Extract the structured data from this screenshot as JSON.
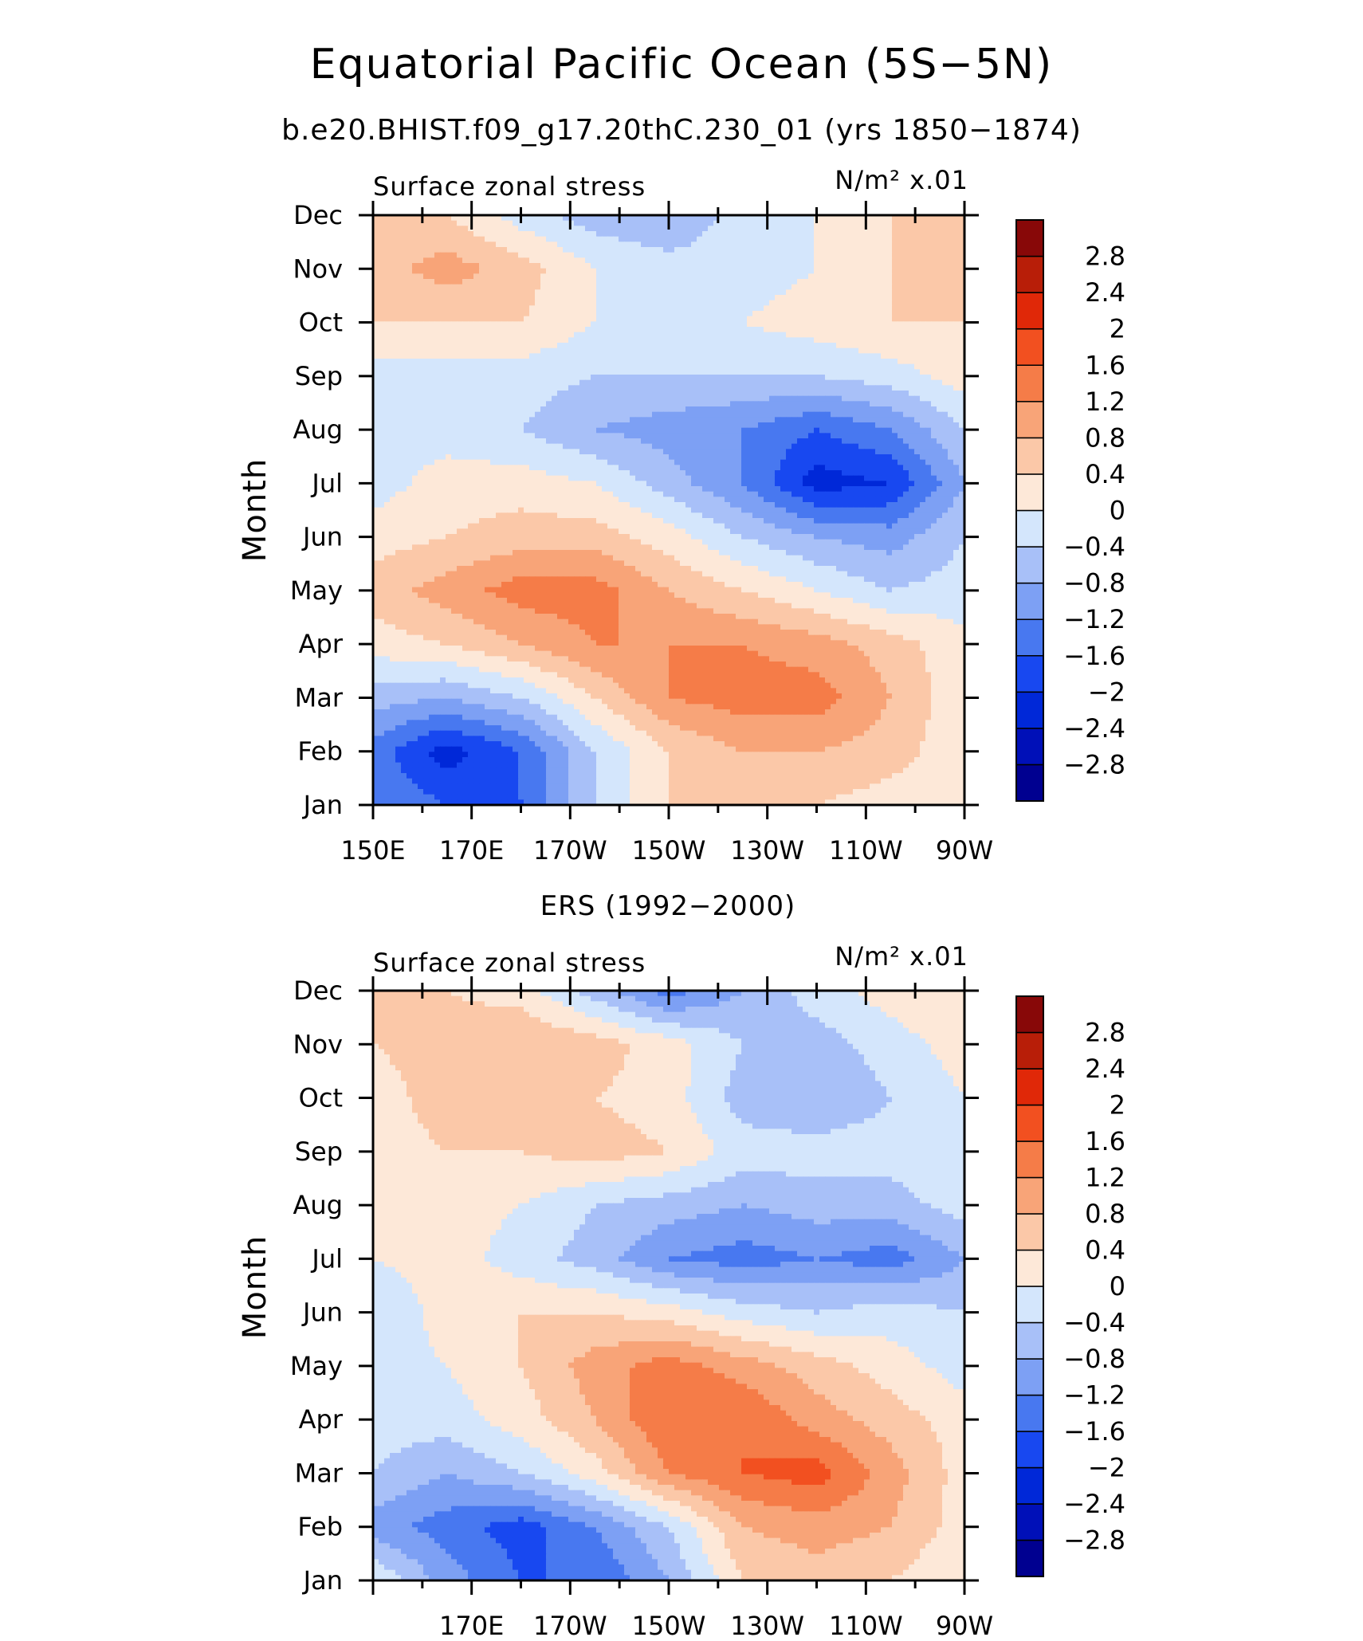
{
  "figure": {
    "title": "Equatorial Pacific Ocean (5S−5N)",
    "subtitle": "b.e20.BHIST.f09_g17.20thC.230_01 (yrs 1850−1874)"
  },
  "chart_data": [
    {
      "type": "heatmap",
      "title": "",
      "left_string": "Surface zonal stress",
      "right_string": "N/m² x.01",
      "ylabel": "Month",
      "xlabel": "",
      "y_ticks": [
        "Jan",
        "Feb",
        "Mar",
        "Apr",
        "May",
        "Jun",
        "Jul",
        "Aug",
        "Sep",
        "Oct",
        "Nov",
        "Dec"
      ],
      "x_tick_labels": [
        "150E",
        "170E",
        "170W",
        "150W",
        "130W",
        "110W",
        "90W"
      ],
      "x_tick_lon": [
        150,
        170,
        190,
        210,
        230,
        250,
        270
      ],
      "xlim": [
        150,
        270
      ],
      "colorbar_levels": [
        -2.8,
        -2.4,
        -2,
        -1.6,
        -1.2,
        -0.8,
        -0.4,
        0,
        0.4,
        0.8,
        1.2,
        1.6,
        2,
        2.4,
        2.8
      ],
      "field_lon": [
        150,
        165,
        180,
        195,
        210,
        225,
        240,
        255,
        270
      ],
      "field_months": [
        "Jan",
        "Feb",
        "Mar",
        "Apr",
        "May",
        "Jun",
        "Jul",
        "Aug",
        "Sep",
        "Oct",
        "Nov",
        "Dec"
      ],
      "values": [
        [
          -1.2,
          -1.6,
          -1.6,
          -0.4,
          0.4,
          0.4,
          0.4,
          0.2,
          0.0
        ],
        [
          -1.4,
          -2.2,
          -1.6,
          -0.4,
          0.4,
          0.8,
          0.8,
          0.6,
          0.1
        ],
        [
          -0.6,
          -0.8,
          -0.4,
          0.4,
          1.2,
          1.4,
          1.4,
          0.8,
          0.1
        ],
        [
          0.2,
          0.4,
          0.8,
          1.2,
          1.2,
          1.2,
          1.0,
          0.6,
          0.1
        ],
        [
          0.6,
          1.0,
          1.4,
          1.4,
          0.8,
          0.4,
          0.0,
          -0.4,
          -0.2
        ],
        [
          0.2,
          0.4,
          0.6,
          0.6,
          0.2,
          -0.4,
          -0.8,
          -1.0,
          -0.4
        ],
        [
          -0.2,
          0.2,
          0.2,
          0.0,
          -0.6,
          -1.2,
          -2.2,
          -2.0,
          -0.8
        ],
        [
          -0.2,
          -0.2,
          -0.4,
          -0.8,
          -1.0,
          -1.2,
          -1.6,
          -1.2,
          -0.4
        ],
        [
          -0.2,
          -0.2,
          -0.2,
          -0.4,
          -0.4,
          -0.4,
          -0.4,
          -0.2,
          0.2
        ],
        [
          0.4,
          0.4,
          0.4,
          0.0,
          0.0,
          0.0,
          0.2,
          0.4,
          0.4
        ],
        [
          0.6,
          1.0,
          0.6,
          0.0,
          -0.2,
          -0.2,
          0.0,
          0.4,
          0.6
        ],
        [
          0.4,
          0.4,
          -0.2,
          -0.6,
          -0.8,
          -0.2,
          0.0,
          0.4,
          0.4
        ]
      ]
    },
    {
      "type": "heatmap",
      "title": "ERS (1992−2000)",
      "left_string": "Surface zonal stress",
      "right_string": "N/m² x.01",
      "ylabel": "Month",
      "xlabel": "",
      "y_ticks": [
        "Jan",
        "Feb",
        "Mar",
        "Apr",
        "May",
        "Jun",
        "Jul",
        "Aug",
        "Sep",
        "Oct",
        "Nov",
        "Dec"
      ],
      "x_tick_labels": [
        "170E",
        "170W",
        "150W",
        "130W",
        "110W",
        "90W"
      ],
      "x_tick_lon": [
        170,
        190,
        210,
        230,
        250,
        270
      ],
      "xlim": [
        150,
        270
      ],
      "colorbar_levels": [
        -2.8,
        -2.4,
        -2,
        -1.6,
        -1.2,
        -0.8,
        -0.4,
        0,
        0.4,
        0.8,
        1.2,
        1.6,
        2,
        2.4,
        2.8
      ],
      "field_lon": [
        150,
        165,
        180,
        195,
        210,
        225,
        240,
        255,
        270
      ],
      "field_months": [
        "Jan",
        "Feb",
        "Mar",
        "Apr",
        "May",
        "Jun",
        "Jul",
        "Aug",
        "Sep",
        "Oct",
        "Nov",
        "Dec"
      ],
      "values": [
        [
          0.0,
          -1.0,
          -1.6,
          -1.6,
          -0.8,
          0.4,
          0.6,
          0.4,
          0.0
        ],
        [
          -1.0,
          -1.4,
          -1.8,
          -1.2,
          -0.4,
          0.8,
          1.0,
          0.8,
          0.2
        ],
        [
          -0.4,
          -0.8,
          -0.4,
          0.2,
          1.2,
          1.6,
          1.8,
          1.0,
          0.2
        ],
        [
          -0.2,
          -0.2,
          0.2,
          0.8,
          1.6,
          1.6,
          1.0,
          0.6,
          0.2
        ],
        [
          -0.2,
          0.0,
          0.4,
          1.0,
          1.4,
          1.0,
          0.6,
          0.2,
          -0.2
        ],
        [
          -0.4,
          0.2,
          0.4,
          0.4,
          0.2,
          -0.2,
          -0.4,
          -0.2,
          -0.4
        ],
        [
          0.0,
          0.2,
          -0.2,
          -0.6,
          -1.2,
          -1.4,
          -1.2,
          -1.4,
          -0.8
        ],
        [
          0.0,
          0.2,
          0.0,
          -0.4,
          -0.6,
          -0.8,
          -0.6,
          -0.6,
          -0.2
        ],
        [
          0.2,
          0.4,
          0.4,
          0.6,
          0.4,
          -0.2,
          -0.2,
          -0.2,
          0.0
        ],
        [
          0.2,
          0.6,
          0.6,
          0.4,
          0.2,
          -0.6,
          -0.8,
          -0.4,
          0.0
        ],
        [
          0.4,
          0.6,
          0.8,
          0.6,
          0.2,
          -0.4,
          -0.6,
          -0.2,
          0.2
        ],
        [
          0.4,
          0.4,
          0.2,
          -0.6,
          -1.4,
          -0.8,
          -0.2,
          0.2,
          0.4
        ]
      ]
    }
  ],
  "colors": {
    "fills": [
      "#000090",
      "#0010b8",
      "#0028d8",
      "#1848f0",
      "#4878f0",
      "#7da0f4",
      "#a8c0f8",
      "#d4e6fc",
      "#fde8d8",
      "#fbc8a8",
      "#f8a478",
      "#f57c48",
      "#f25020",
      "#e02808",
      "#b81e08",
      "#880808"
    ]
  }
}
